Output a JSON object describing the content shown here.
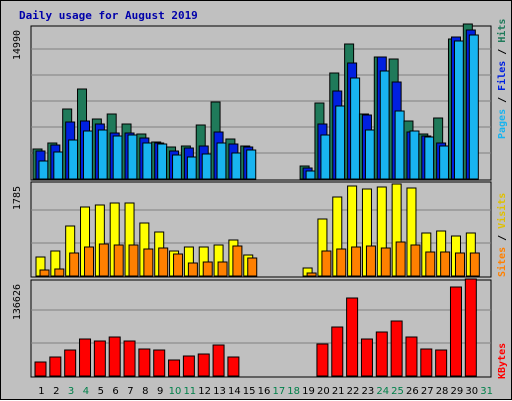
{
  "chart_data": {
    "type": "bar",
    "title": "Daily usage for August 2019",
    "categories": [
      "1",
      "2",
      "3",
      "4",
      "5",
      "6",
      "7",
      "8",
      "9",
      "10",
      "11",
      "12",
      "13",
      "14",
      "15",
      "16",
      "17",
      "18",
      "19",
      "20",
      "21",
      "22",
      "23",
      "24",
      "25",
      "26",
      "27",
      "28",
      "29",
      "30",
      "31"
    ],
    "weekend_days": [
      "3",
      "4",
      "10",
      "11",
      "17",
      "18",
      "24",
      "25",
      "31"
    ],
    "panels": [
      {
        "id": "hits-files-pages",
        "axis_max_label": "14990",
        "ymax": 14990,
        "series": [
          {
            "name": "Hits",
            "color": "#1f7a5a",
            "values": [
              3000,
              3600,
              7000,
              9000,
              6000,
              6500,
              5500,
              4500,
              3700,
              3200,
              3300,
              5400,
              7700,
              4000,
              3300,
              0,
              0,
              0,
              1300,
              7600,
              10600,
              13500,
              6500,
              12200,
              12000,
              5800,
              4500,
              6100,
              14000,
              15500,
              0
            ]
          },
          {
            "name": "Files",
            "color": "#0020e0",
            "values": [
              2800,
              3400,
              5700,
              5800,
              5500,
              4600,
              4600,
              4100,
              3600,
              2800,
              3100,
              3300,
              4700,
              3500,
              3200,
              0,
              0,
              0,
              1100,
              5500,
              8800,
              11600,
              6400,
              12200,
              9700,
              4700,
              4300,
              3600,
              14200,
              14900,
              0
            ]
          },
          {
            "name": "Pages",
            "color": "#18b4f0",
            "values": [
              1800,
              2700,
              3900,
              4800,
              4900,
              4300,
              4400,
              3600,
              3500,
              2400,
              2200,
              2500,
              3600,
              2600,
              2900,
              0,
              0,
              0,
              800,
              4400,
              7300,
              10100,
              4900,
              10800,
              6800,
              4800,
              4200,
              3300,
              13800,
              14400,
              0
            ]
          }
        ]
      },
      {
        "id": "visits-sites",
        "axis_max_label": "1785",
        "ymax": 1785,
        "series": [
          {
            "name": "Visits",
            "color": "#ffff00",
            "values": [
              380,
              490,
              990,
              1360,
              1400,
              1430,
              1430,
              1040,
              870,
              500,
              560,
              560,
              600,
              700,
              420,
              0,
              0,
              0,
              150,
              1120,
              1550,
              1770,
              1710,
              1740,
              1810,
              1720,
              850,
              880,
              790,
              850,
              0
            ]
          },
          {
            "name": "Sites",
            "color": "#ff8000",
            "values": [
              120,
              130,
              450,
              570,
              630,
              600,
              610,
              520,
              540,
              430,
              260,
              270,
              280,
              590,
              350,
              0,
              0,
              0,
              60,
              500,
              530,
              570,
              580,
              550,
              670,
              610,
              470,
              470,
              450,
              450,
              0
            ]
          }
        ]
      },
      {
        "id": "kbytes",
        "axis_max_label": "136626",
        "ymax": 136626,
        "series": [
          {
            "name": "KBytes",
            "color": "#ff0000",
            "values": [
              20000,
              28000,
              38000,
              54000,
              52000,
              58000,
              52000,
              40000,
              38000,
              24000,
              29000,
              32000,
              45000,
              28000,
              0,
              0,
              0,
              0,
              0,
              47000,
              72000,
              114000,
              54000,
              64000,
              81000,
              58000,
              40000,
              38000,
              131000,
              143000,
              0
            ]
          }
        ]
      }
    ],
    "right_labels": {
      "panel1": [
        {
          "text": "Pages",
          "color": "#18b4f0"
        },
        {
          "text": " / ",
          "color": "#000000"
        },
        {
          "text": "Files",
          "color": "#0020e0"
        },
        {
          "text": " / ",
          "color": "#000000"
        },
        {
          "text": "Hits",
          "color": "#1f7a5a"
        }
      ],
      "panel2": [
        {
          "text": "Sites",
          "color": "#ff8000"
        },
        {
          "text": " / ",
          "color": "#000000"
        },
        {
          "text": "Visits",
          "color": "#e0c000"
        }
      ],
      "panel3": [
        {
          "text": "KBytes",
          "color": "#ff0000"
        }
      ]
    },
    "colors": {
      "title": "#0000aa",
      "weekday_label": "#000000",
      "weekend_label": "#00804a",
      "gridline": "#808080"
    }
  }
}
